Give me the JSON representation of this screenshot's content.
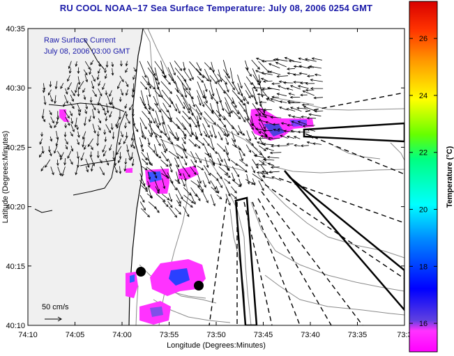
{
  "title": "RU COOL  NOAA–17  Sea Surface Temperature:  July 08, 2006 0254 GMT",
  "legend": {
    "line1": "Raw Surface Current",
    "line2": "July 08, 2006 03:00 GMT"
  },
  "scale_label": "50 cm/s",
  "colors": {
    "title": "#1a1aa8",
    "land": "#f0f0f0",
    "sea": "#ffffff",
    "contour": "#8a8a8a",
    "coast": "#000000",
    "arrow": "#000000"
  },
  "chart_data": {
    "type": "map",
    "xlabel": "Longitude (Degrees:Minutes)",
    "ylabel": "Latitude (Degrees:Minutes)",
    "x_ticks": [
      "74:10",
      "74:05",
      "74:00",
      "73:55",
      "73:50",
      "73:45",
      "73:40",
      "73:35",
      "73:3"
    ],
    "y_ticks": [
      "40:35",
      "40:30",
      "40:25",
      "40:20",
      "40:15",
      "40:10"
    ],
    "x_range_minutes_west": [
      70,
      27
    ],
    "y_range_minutes_north": [
      10,
      35
    ],
    "colorbar": {
      "title": "Temperature (°C)",
      "ticks": [
        16,
        18,
        20,
        22,
        24,
        26
      ],
      "range": [
        15,
        27.3
      ]
    }
  }
}
